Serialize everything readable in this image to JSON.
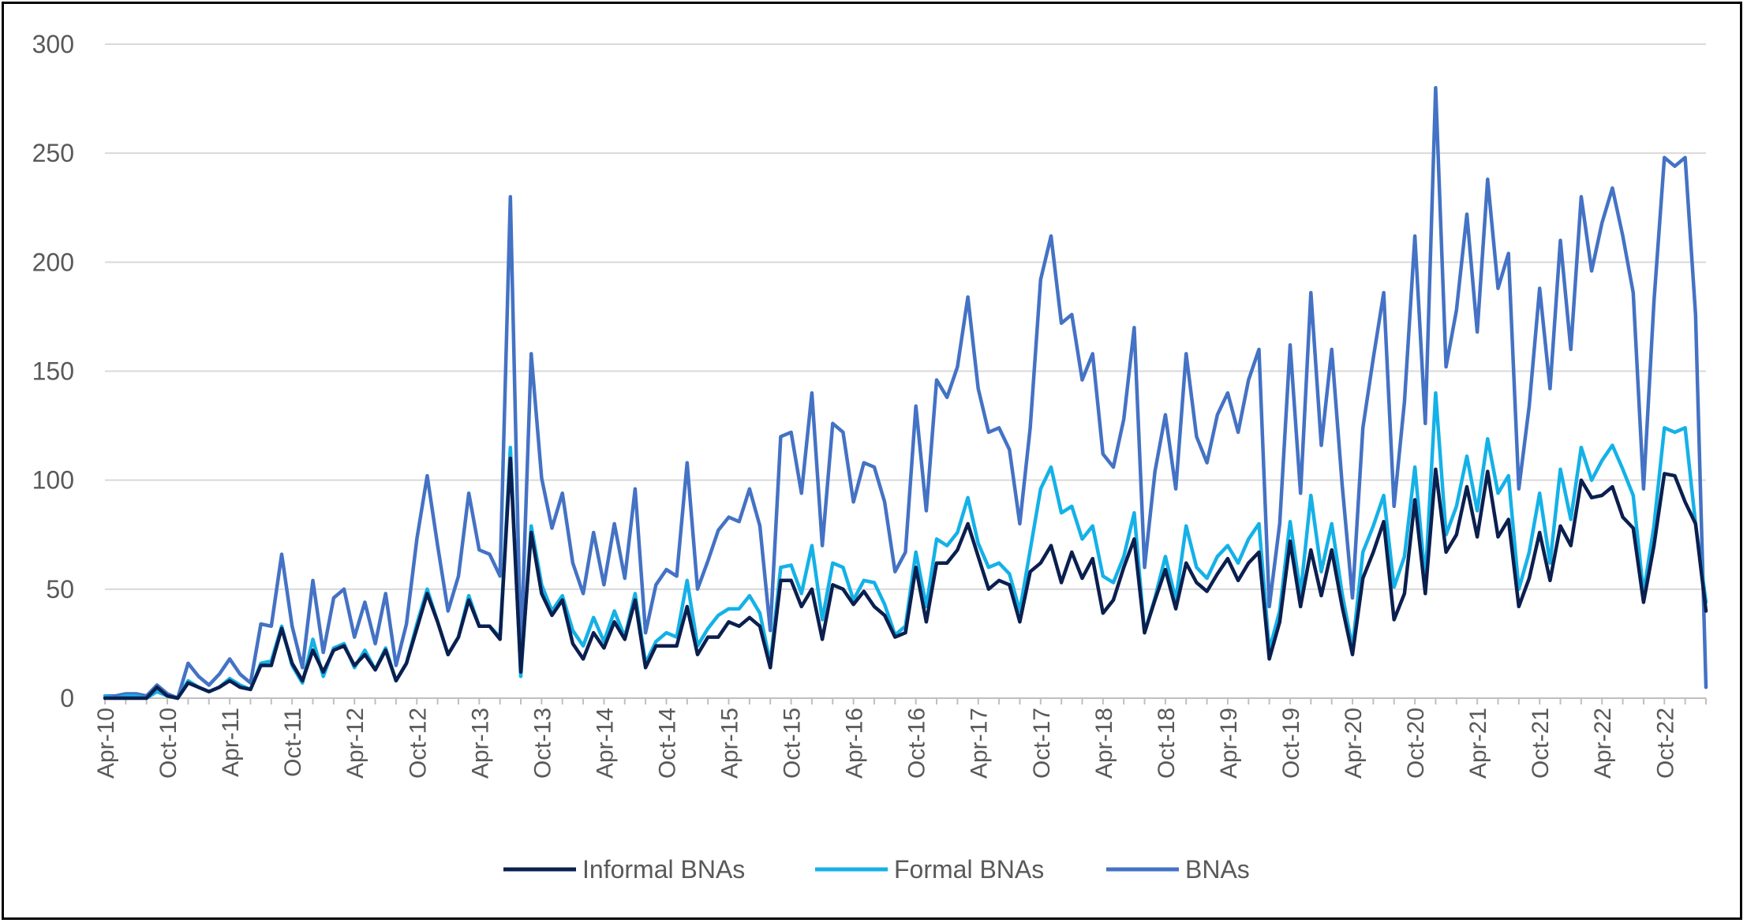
{
  "chart_data": {
    "type": "line",
    "title": "",
    "xlabel": "",
    "ylabel": "",
    "ylim": [
      0,
      300
    ],
    "yticks": [
      0,
      50,
      100,
      150,
      200,
      250,
      300
    ],
    "grid": "horizontal",
    "legend_position": "bottom",
    "x_start": "Apr-10",
    "x_tick_labels": [
      "Apr-10",
      "Oct-10",
      "Apr-11",
      "Oct-11",
      "Apr-12",
      "Oct-12",
      "Apr-13",
      "Oct-13",
      "Apr-14",
      "Oct-14",
      "Apr-15",
      "Oct-15",
      "Apr-16",
      "Oct-16",
      "Apr-17",
      "Oct-17",
      "Apr-18",
      "Oct-18",
      "Apr-19",
      "Oct-19",
      "Apr-20",
      "Oct-20",
      "Apr-21",
      "Oct-21",
      "Apr-22",
      "Oct-22"
    ],
    "series": [
      {
        "name": "Informal BNAs",
        "color": "#0b1f4f",
        "values": [
          0,
          0,
          0,
          0,
          0,
          5,
          1,
          0,
          7,
          5,
          3,
          5,
          8,
          5,
          4,
          15,
          15,
          32,
          16,
          8,
          22,
          12,
          22,
          24,
          15,
          20,
          13,
          22,
          8,
          16,
          32,
          48,
          35,
          20,
          28,
          45,
          33,
          33,
          27,
          110,
          12,
          76,
          48,
          38,
          45,
          25,
          18,
          30,
          23,
          35,
          27,
          45,
          14,
          24,
          24,
          24,
          42,
          20,
          28,
          28,
          35,
          33,
          37,
          33,
          14,
          54,
          54,
          42,
          50,
          27,
          52,
          50,
          43,
          49,
          42,
          38,
          28,
          30,
          60,
          35,
          62,
          62,
          68,
          80,
          65,
          50,
          54,
          52,
          35,
          58,
          62,
          70,
          53,
          67,
          55,
          64,
          39,
          45,
          60,
          73,
          30,
          45,
          59,
          41,
          62,
          53,
          49,
          57,
          64,
          54,
          62,
          67,
          18,
          35,
          72,
          42,
          68,
          47,
          68,
          42,
          20,
          55,
          67,
          81,
          36,
          48,
          91,
          48,
          105,
          67,
          75,
          97,
          74,
          104,
          74,
          82,
          42,
          55,
          76,
          54,
          79,
          70,
          100,
          92,
          93,
          97,
          83,
          78,
          44,
          70,
          103,
          102,
          90,
          80,
          40
        ]
      },
      {
        "name": "Formal BNAs",
        "color": "#14b1e7",
        "values": [
          1,
          0,
          1,
          1,
          0,
          3,
          1,
          0,
          8,
          5,
          3,
          5,
          9,
          6,
          4,
          16,
          17,
          33,
          15,
          7,
          27,
          10,
          23,
          25,
          14,
          22,
          13,
          23,
          8,
          16,
          34,
          50,
          35,
          20,
          28,
          47,
          33,
          33,
          28,
          115,
          10,
          79,
          52,
          40,
          47,
          31,
          24,
          37,
          26,
          40,
          28,
          48,
          16,
          26,
          30,
          28,
          54,
          24,
          32,
          38,
          41,
          41,
          47,
          39,
          16,
          60,
          61,
          48,
          70,
          36,
          62,
          60,
          45,
          54,
          53,
          43,
          29,
          33,
          67,
          42,
          73,
          70,
          76,
          92,
          71,
          60,
          62,
          57,
          40,
          68,
          96,
          106,
          85,
          88,
          73,
          79,
          56,
          53,
          65,
          85,
          30,
          46,
          65,
          45,
          79,
          60,
          55,
          65,
          70,
          62,
          73,
          80,
          22,
          40,
          81,
          48,
          93,
          58,
          80,
          48,
          23,
          67,
          79,
          93,
          51,
          65,
          106,
          54,
          140,
          75,
          88,
          111,
          86,
          119,
          94,
          102,
          50,
          67,
          94,
          62,
          105,
          82,
          115,
          100,
          109,
          116,
          105,
          93,
          48,
          79,
          124,
          122,
          124,
          80,
          44
        ]
      },
      {
        "name": "BNAs",
        "color": "#4472c4",
        "values": [
          1,
          1,
          2,
          2,
          1,
          6,
          2,
          0,
          16,
          10,
          6,
          11,
          18,
          11,
          7,
          34,
          33,
          66,
          33,
          14,
          54,
          21,
          46,
          50,
          28,
          44,
          25,
          48,
          15,
          34,
          73,
          102,
          70,
          40,
          56,
          94,
          68,
          66,
          56,
          230,
          20,
          158,
          101,
          78,
          94,
          62,
          48,
          76,
          52,
          80,
          55,
          96,
          30,
          52,
          59,
          56,
          108,
          50,
          63,
          77,
          83,
          81,
          96,
          79,
          31,
          120,
          122,
          94,
          140,
          70,
          126,
          122,
          90,
          108,
          106,
          90,
          58,
          67,
          134,
          86,
          146,
          138,
          152,
          184,
          142,
          122,
          124,
          114,
          80,
          124,
          192,
          212,
          172,
          176,
          146,
          158,
          112,
          106,
          128,
          170,
          60,
          104,
          130,
          96,
          158,
          120,
          108,
          130,
          140,
          122,
          146,
          160,
          42,
          80,
          162,
          94,
          186,
          116,
          160,
          98,
          46,
          124,
          156,
          186,
          88,
          136,
          212,
          126,
          280,
          152,
          178,
          222,
          168,
          238,
          188,
          204,
          96,
          134,
          188,
          142,
          210,
          160,
          230,
          196,
          218,
          234,
          212,
          186,
          96,
          182,
          248,
          244,
          248,
          176,
          5
        ]
      }
    ]
  }
}
